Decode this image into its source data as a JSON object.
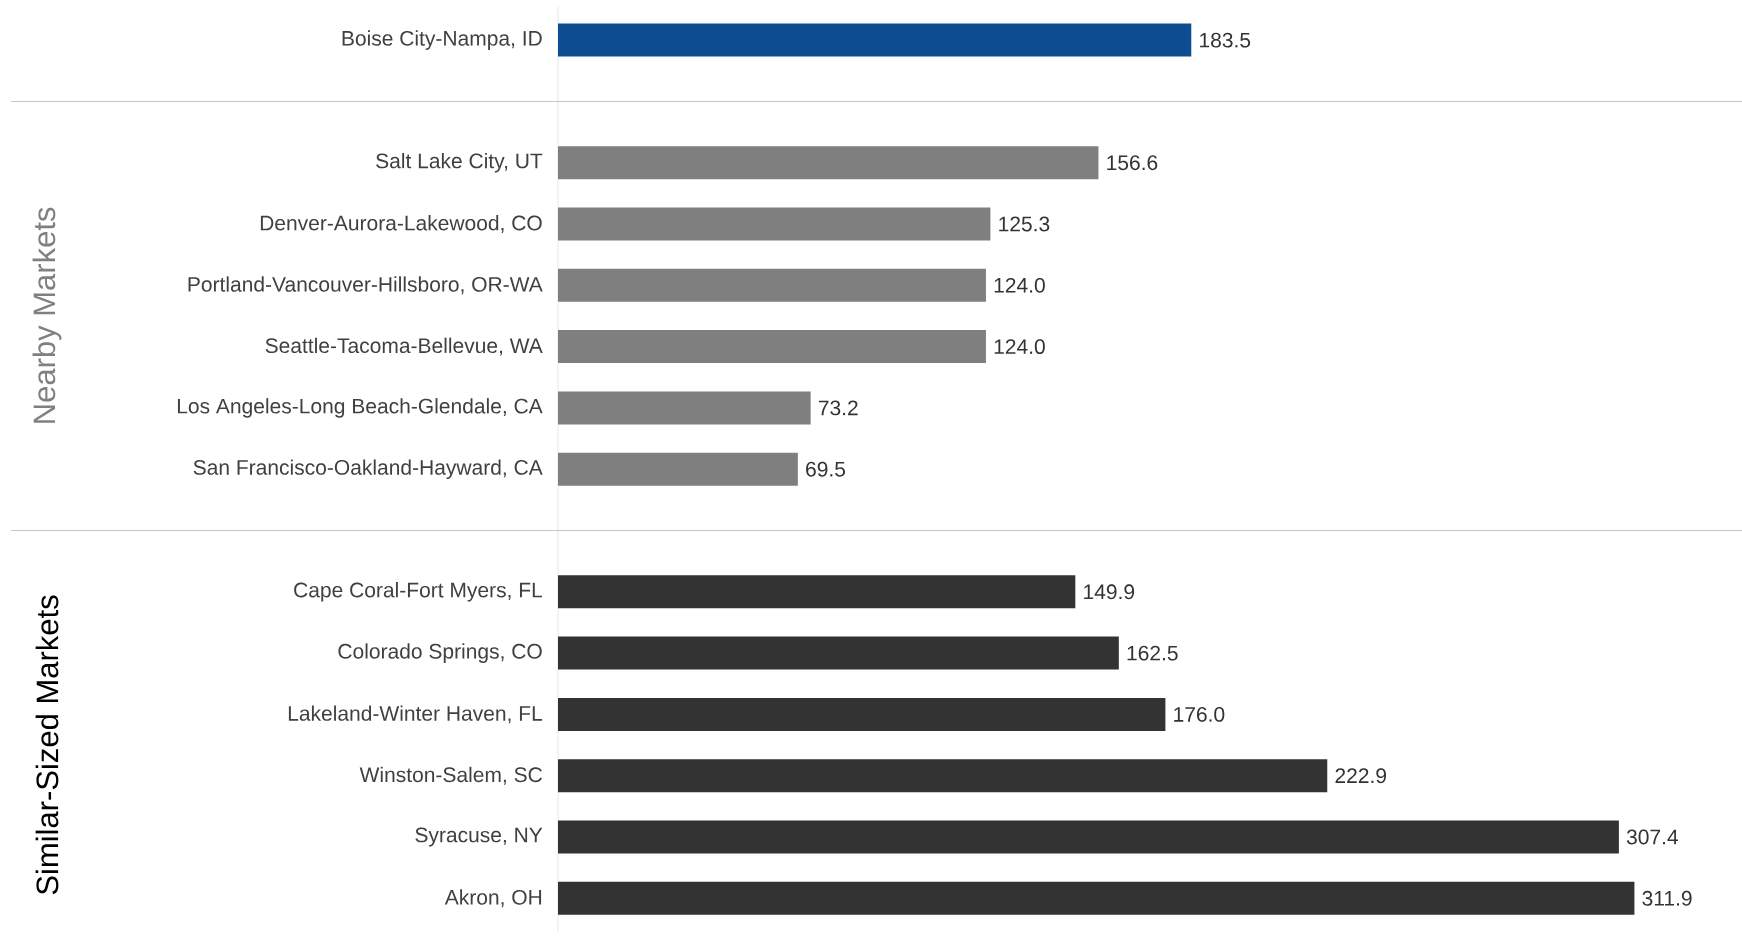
{
  "chart_data": {
    "type": "bar",
    "orientation": "horizontal",
    "categories": [
      "Boise City-Nampa, ID",
      null,
      "Salt Lake City, UT",
      "Denver-Aurora-Lakewood, CO",
      "Portland-Vancouver-Hillsboro, OR-WA",
      "Seattle-Tacoma-Bellevue, WA",
      "Los Angeles-Long Beach-Glendale, CA",
      "San Francisco-Oakland-Hayward, CA",
      null,
      "Cape Coral-Fort Myers, FL",
      "Colorado Springs, CO",
      "Lakeland-Winter Haven, FL",
      "Winston-Salem, SC",
      "Syracuse, NY",
      "Akron, OH"
    ],
    "values": [
      183.5,
      null,
      156.6,
      125.3,
      124.0,
      124.0,
      73.2,
      69.5,
      null,
      149.9,
      162.5,
      176.0,
      222.9,
      307.4,
      311.9
    ],
    "value_labels": [
      "183.5",
      null,
      "156.6",
      "125.3",
      "124.0",
      "124.0",
      "73.2",
      "69.5",
      null,
      "149.9",
      "162.5",
      "176.0",
      "222.9",
      "307.4",
      "311.9"
    ],
    "colors": [
      "#0e4c92",
      null,
      "#7f7f7f",
      "#7f7f7f",
      "#7f7f7f",
      "#7f7f7f",
      "#7f7f7f",
      "#7f7f7f",
      null,
      "#333333",
      "#333333",
      "#333333",
      "#333333",
      "#333333",
      "#333333"
    ],
    "annotations": [
      "Nearby Markets",
      "Similar-Sized Markets"
    ]
  }
}
